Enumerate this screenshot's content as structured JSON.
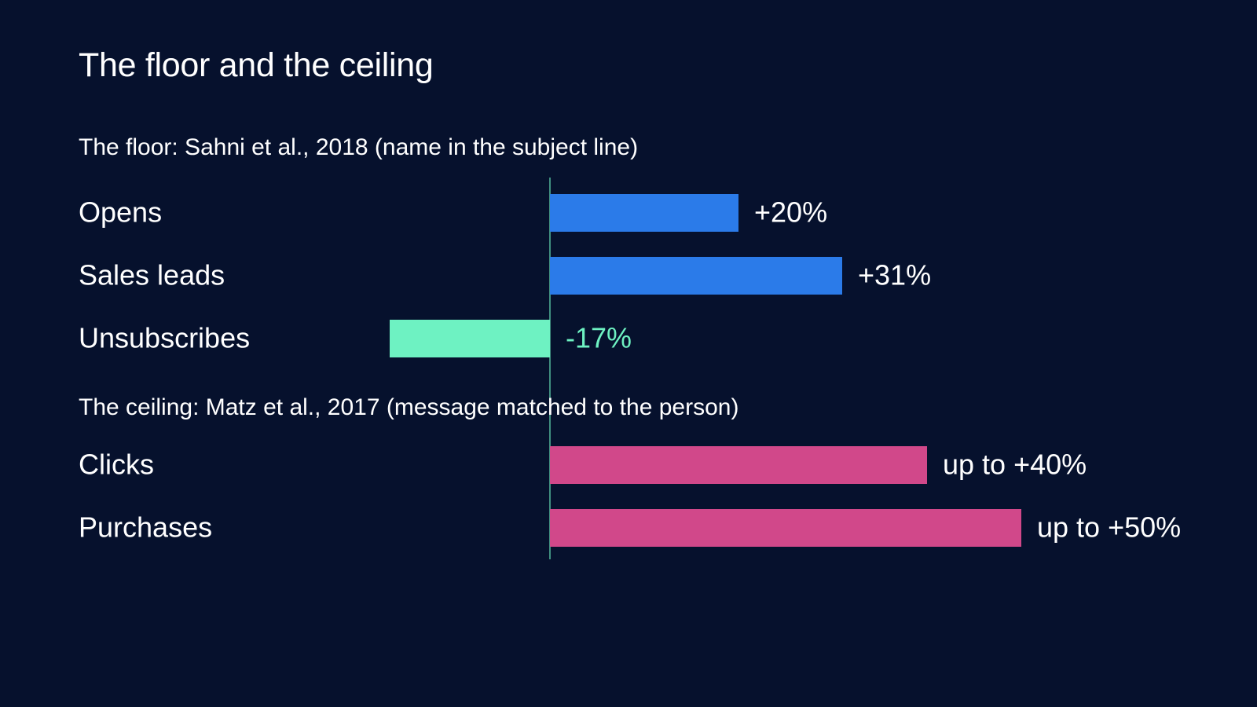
{
  "chart_data": {
    "type": "bar",
    "orientation": "horizontal",
    "title": "The floor and the ceiling",
    "xlabel": "",
    "ylabel": "",
    "xlim": [
      -17,
      50
    ],
    "grid": false,
    "legend": "none",
    "unit": "%",
    "colors": {
      "background": "#06112d",
      "text": "#ffffff",
      "positive_floor": "#2b7be9",
      "negative": "#6ef2c2",
      "ceiling": "#d1488a",
      "zero_line": "#6ef2c2"
    },
    "groups": [
      {
        "label": "The floor: Sahni et al., 2018 (name in the subject line)",
        "color": "#2b7be9",
        "items": [
          {
            "category": "Opens",
            "value": 20,
            "display": "+20%"
          },
          {
            "category": "Sales leads",
            "value": 31,
            "display": "+31%"
          },
          {
            "category": "Unsubscribes",
            "value": -17,
            "display": "-17%"
          }
        ]
      },
      {
        "label": "The ceiling: Matz et al., 2017 (message matched to the person)",
        "color": "#d1488a",
        "items": [
          {
            "category": "Clicks",
            "value": 40,
            "display": "up to +40%"
          },
          {
            "category": "Purchases",
            "value": 50,
            "display": "up to +50%"
          }
        ]
      }
    ]
  }
}
